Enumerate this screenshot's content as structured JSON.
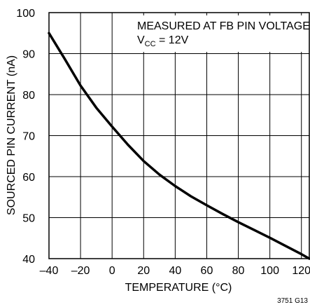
{
  "chart_data": {
    "type": "line",
    "xlabel": "TEMPERATURE (°C)",
    "ylabel": "SOURCED PIN CURRENT (nA)",
    "xlim": [
      -40,
      125
    ],
    "ylim": [
      40,
      100
    ],
    "x_ticks": [
      -40,
      -20,
      0,
      20,
      40,
      60,
      80,
      100,
      120
    ],
    "x_tick_labels": [
      "–40",
      "–20",
      "0",
      "20",
      "40",
      "60",
      "80",
      "100",
      "120"
    ],
    "y_ticks": [
      40,
      50,
      60,
      70,
      80,
      90,
      100
    ],
    "y_tick_labels": [
      "40",
      "50",
      "60",
      "70",
      "80",
      "90",
      "100"
    ],
    "grid": true,
    "annotation": {
      "line1": "MEASURED AT FB PIN VOLTAGE",
      "line2_prefix": "V",
      "line2_sub": "CC",
      "line2_suffix": " = 12V"
    },
    "figure_code": "3751 G13",
    "series": [
      {
        "x": [
          -40,
          -30,
          -20,
          -10,
          0,
          10,
          20,
          30,
          40,
          50,
          60,
          70,
          80,
          90,
          100,
          110,
          120,
          125
        ],
        "y": [
          95,
          88.7,
          82.2,
          76.8,
          72.2,
          67.8,
          63.8,
          60.5,
          57.7,
          55.2,
          53,
          50.9,
          48.9,
          47,
          45.1,
          43.1,
          41.1,
          40
        ],
        "color": "#000000"
      }
    ]
  }
}
